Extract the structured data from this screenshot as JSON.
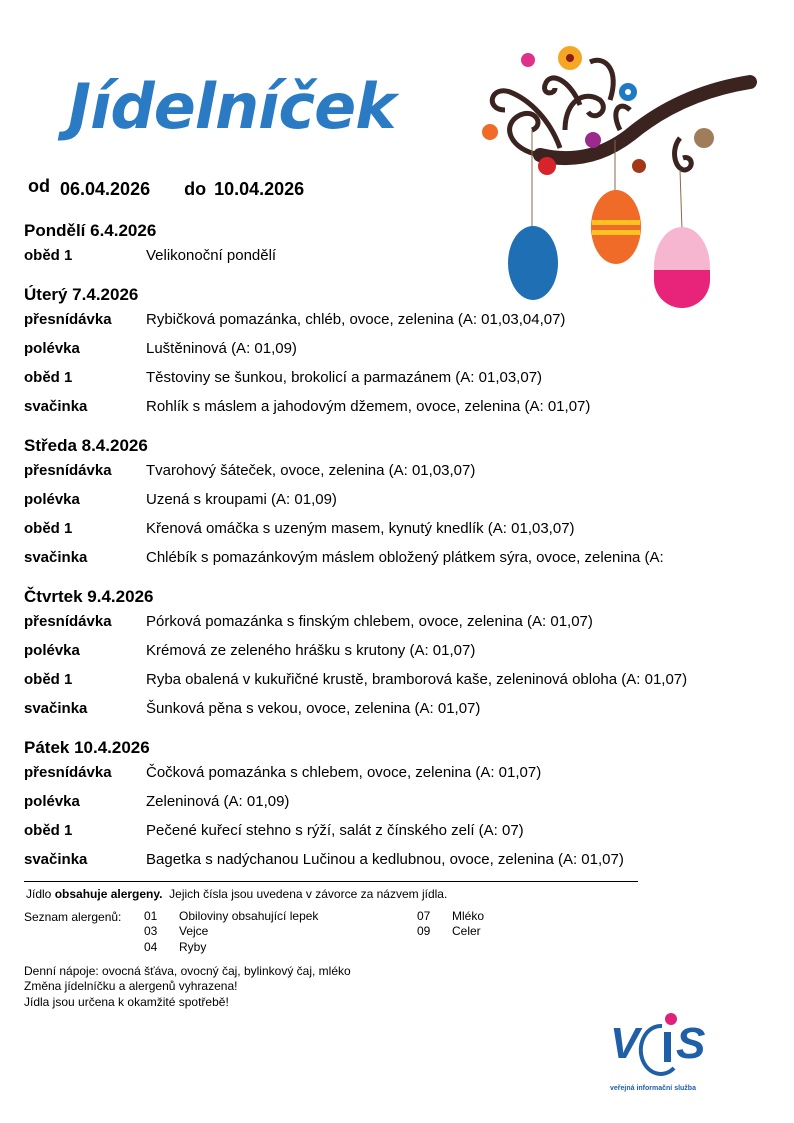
{
  "title": "Jídelníček",
  "period": {
    "from_label": "od",
    "from": "06.04.2026",
    "to_label": "do",
    "to": "10.04.2026"
  },
  "days": [
    {
      "title": "Pondělí 6.4.2026",
      "rows": [
        {
          "label": "oběd 1",
          "meal": "Velikonoční pondělí"
        }
      ]
    },
    {
      "title": "Úterý 7.4.2026",
      "rows": [
        {
          "label": "přesnídávka",
          "meal": "Rybičková pomazánka, chléb, ovoce, zelenina  (A: 01,03,04,07)"
        },
        {
          "label": "polévka",
          "meal": "Luštěninová  (A: 01,09)"
        },
        {
          "label": "oběd 1",
          "meal": "Těstoviny se šunkou, brokolicí a parmazánem  (A: 01,03,07)"
        },
        {
          "label": "svačinka",
          "meal": "Rohlík s máslem a jahodovým džemem, ovoce, zelenina  (A: 01,07)"
        }
      ]
    },
    {
      "title": "Středa 8.4.2026",
      "rows": [
        {
          "label": "přesnídávka",
          "meal": "Tvarohový šáteček, ovoce, zelenina  (A: 01,03,07)"
        },
        {
          "label": "polévka",
          "meal": "Uzená s kroupami  (A: 01,09)"
        },
        {
          "label": "oběd 1",
          "meal": "Křenová omáčka s uzeným masem, kynutý knedlík  (A: 01,03,07)"
        },
        {
          "label": "svačinka",
          "meal": "Chlébík s pomazánkovým máslem obložený plátkem sýra, ovoce, zelenina  (A:"
        }
      ]
    },
    {
      "title": "Čtvrtek 9.4.2026",
      "rows": [
        {
          "label": "přesnídávka",
          "meal": "Pórková pomazánka s finským chlebem, ovoce, zelenina  (A: 01,07)"
        },
        {
          "label": "polévka",
          "meal": "Krémová ze zeleného hrášku s krutony  (A: 01,07)"
        },
        {
          "label": "oběd 1",
          "meal": "Ryba obalená v kukuřičné krustě, bramborová kaše, zeleninová obloha  (A: 01,07)"
        },
        {
          "label": "svačinka",
          "meal": "Šunková pěna s vekou, ovoce, zelenina  (A: 01,07)"
        }
      ]
    },
    {
      "title": "Pátek 10.4.2026",
      "rows": [
        {
          "label": "přesnídávka",
          "meal": "Čočková pomazánka s chlebem, ovoce, zelenina  (A: 01,07)"
        },
        {
          "label": "polévka",
          "meal": "Zeleninová  (A: 01,09)"
        },
        {
          "label": "oběd 1",
          "meal": "Pečené kuřecí stehno s rýží, salát z čínského zelí  (A: 07)"
        },
        {
          "label": "svačinka",
          "meal": "Bagetka s nadýchanou Lučinou a kedlubnou, ovoce, zelenina  (A: 01,07)"
        }
      ]
    }
  ],
  "notes": {
    "allergen_intro_1": "Jídlo ",
    "allergen_intro_bold": "obsahuje alergeny.",
    "allergen_intro_2": "  Jejich čísla jsou uvedena v závorce za názvem jídla.",
    "allergen_list_label": "Seznam alergenů:",
    "allergens": [
      {
        "code": "01",
        "name": "Obiloviny obsahující lepek"
      },
      {
        "code": "03",
        "name": "Vejce"
      },
      {
        "code": "04",
        "name": "Ryby"
      },
      {
        "code": "07",
        "name": "Mléko"
      },
      {
        "code": "09",
        "name": "Celer"
      }
    ],
    "drinks": "Denní nápoje: ovocná šťáva, ovocný čaj, bylinkový čaj, mléko",
    "change": "Změna jídelníčku a alergenů vyhrazena!",
    "consume": "Jídla jsou určena k okamžité spotřebě!"
  },
  "logo": {
    "text": "VIS",
    "tagline": "veřejná informační služba",
    "color": "#1f5fa8",
    "dot_color": "#e0217a"
  },
  "colors": {
    "title": "#2a7bc4",
    "branch": "#3b2320"
  }
}
